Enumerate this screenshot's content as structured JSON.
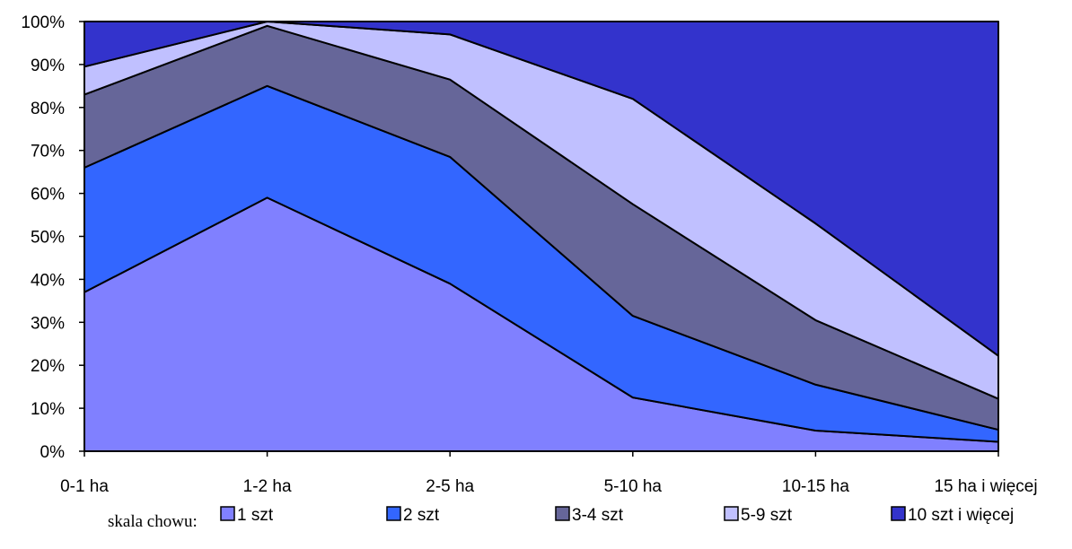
{
  "chart_data": {
    "type": "area",
    "stacked": "percent",
    "categories": [
      "0-1 ha",
      "1-2 ha",
      "2-5 ha",
      "5-10 ha",
      "10-15 ha",
      "15 ha  i więcej"
    ],
    "ylim": [
      0,
      100
    ],
    "yticks": [
      "0%",
      "10%",
      "20%",
      "30%",
      "40%",
      "50%",
      "60%",
      "70%",
      "80%",
      "90%",
      "100%"
    ],
    "grid": false,
    "legend_title": "skala chowu:",
    "legend_position": "bottom",
    "series": [
      {
        "name": "1 szt",
        "color": "#8080ff",
        "values": [
          37,
          59,
          39,
          12.5,
          4.8,
          2.2
        ]
      },
      {
        "name": "2 szt",
        "color": "#3366ff",
        "values": [
          29,
          26,
          29.5,
          19,
          10.7,
          2.8
        ]
      },
      {
        "name": "3-4 szt",
        "color": "#666699",
        "values": [
          17,
          14,
          18,
          26,
          15,
          7.2
        ]
      },
      {
        "name": "5-9 szt",
        "color": "#c0c0ff",
        "values": [
          6.5,
          1,
          10.5,
          24.5,
          22.5,
          10
        ]
      },
      {
        "name": "10 szt i więcej",
        "color": "#3333cc",
        "values": [
          10.5,
          0,
          3,
          18,
          47,
          77.8
        ]
      }
    ]
  }
}
